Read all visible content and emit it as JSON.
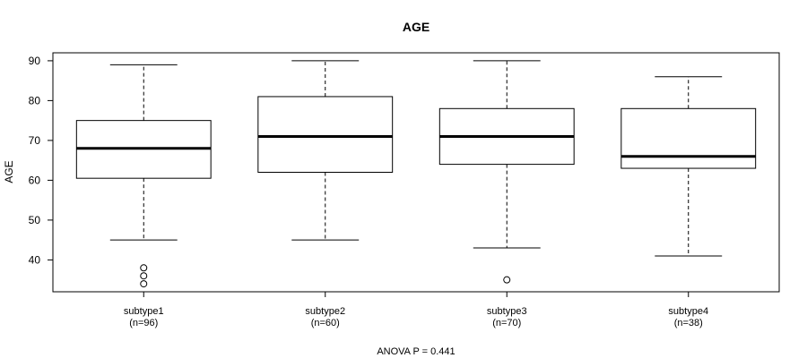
{
  "chart_data": {
    "type": "boxplot",
    "title": "AGE",
    "ylabel": "AGE",
    "xlabel": "",
    "ylim": [
      32,
      92
    ],
    "yticks": [
      40,
      50,
      60,
      70,
      80,
      90
    ],
    "grid": false,
    "categories": [
      {
        "name": "subtype1",
        "n_label": "(n=96)"
      },
      {
        "name": "subtype2",
        "n_label": "(n=60)"
      },
      {
        "name": "subtype3",
        "n_label": "(n=70)"
      },
      {
        "name": "subtype4",
        "n_label": "(n=38)"
      }
    ],
    "boxes": [
      {
        "whisker_low": 45,
        "q1": 60.5,
        "median": 68,
        "q3": 75,
        "whisker_high": 89,
        "outliers": [
          34,
          36,
          38
        ]
      },
      {
        "whisker_low": 45,
        "q1": 62,
        "median": 71,
        "q3": 81,
        "whisker_high": 90,
        "outliers": []
      },
      {
        "whisker_low": 43,
        "q1": 64,
        "median": 71,
        "q3": 78,
        "whisker_high": 90,
        "outliers": [
          35
        ]
      },
      {
        "whisker_low": 41,
        "q1": 63,
        "median": 66,
        "q3": 78,
        "whisker_high": 86,
        "outliers": []
      }
    ],
    "footer": "ANOVA P = 0.441"
  }
}
